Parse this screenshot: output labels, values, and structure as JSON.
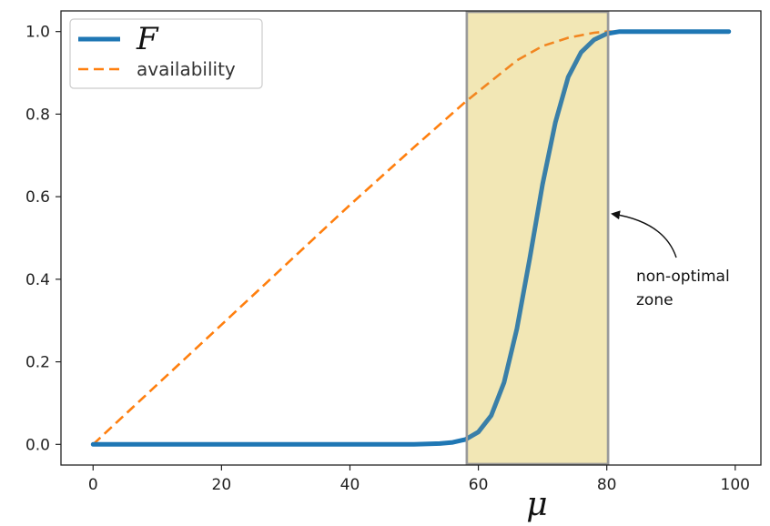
{
  "chart_data": {
    "type": "line",
    "xlabel": "μ",
    "ylabel": "",
    "xlim": [
      -5,
      104
    ],
    "ylim": [
      -0.05,
      1.05
    ],
    "x_ticks": [
      0,
      20,
      40,
      60,
      80,
      100
    ],
    "x_tick_labels": [
      "0",
      "20",
      "40",
      "60",
      "80",
      "100"
    ],
    "y_ticks": [
      0.0,
      0.2,
      0.4,
      0.6,
      0.8,
      1.0
    ],
    "y_tick_labels": [
      "0.0",
      "0.2",
      "0.4",
      "0.6",
      "0.8",
      "1.0"
    ],
    "grid": false,
    "legend_position": "upper-left",
    "series": [
      {
        "name": "F",
        "style": "solid",
        "color": "#1f77b4",
        "x": [
          0,
          10,
          20,
          30,
          40,
          50,
          54,
          56,
          58,
          60,
          62,
          64,
          66,
          68,
          70,
          72,
          74,
          76,
          78,
          80,
          82,
          85,
          90,
          95,
          99
        ],
        "y": [
          0.0,
          0.0,
          0.0,
          0.0,
          0.0,
          0.0,
          0.002,
          0.005,
          0.012,
          0.03,
          0.07,
          0.15,
          0.28,
          0.45,
          0.63,
          0.78,
          0.89,
          0.95,
          0.98,
          0.995,
          1.0,
          1.0,
          1.0,
          1.0,
          1.0
        ]
      },
      {
        "name": "availability",
        "style": "dashed",
        "color": "#ff7f0e",
        "x": [
          0,
          10,
          20,
          30,
          40,
          50,
          58,
          62,
          66,
          70,
          74,
          78,
          80,
          85,
          90,
          95,
          99
        ],
        "y": [
          0.0,
          0.145,
          0.29,
          0.435,
          0.58,
          0.72,
          0.83,
          0.88,
          0.93,
          0.965,
          0.985,
          0.997,
          1.0,
          1.0,
          1.0,
          1.0,
          1.0
        ]
      }
    ],
    "highlight_region": {
      "x_range": [
        58.2,
        80.2
      ],
      "fill_color": "#fff6c4",
      "edge_color": "#9a9a9a"
    },
    "annotations": [
      {
        "text_lines": [
          "non-optimal",
          "zone"
        ]
      }
    ]
  }
}
